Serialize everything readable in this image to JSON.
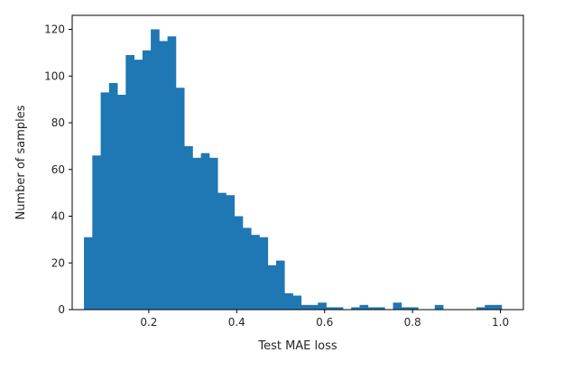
{
  "chart_data": {
    "type": "bar",
    "title": "",
    "xlabel": "Test MAE loss",
    "ylabel": "Number of samples",
    "xlim": [
      0.0258,
      1.0522
    ],
    "ylim": [
      0,
      126
    ],
    "xticks": [
      0.2,
      0.4,
      0.6,
      0.8,
      1.0
    ],
    "xtick_labels": [
      "0.2",
      "0.4",
      "0.6",
      "0.8",
      "1.0"
    ],
    "yticks": [
      0,
      20,
      40,
      60,
      80,
      100,
      120
    ],
    "ytick_labels": [
      "0",
      "20",
      "40",
      "60",
      "80",
      "100",
      "120"
    ],
    "bin_range": [
      0.0526,
      1.0
    ],
    "bin_width": 0.019,
    "bar_color": "#1f77b4",
    "grid": false,
    "legend": "none",
    "values": [
      31,
      66,
      93,
      97,
      92,
      109,
      107,
      111,
      120,
      115,
      117,
      95,
      70,
      65,
      67,
      65,
      50,
      49,
      40,
      35,
      32,
      31,
      19,
      21,
      7,
      6,
      2,
      2,
      3,
      1,
      1,
      0,
      1,
      2,
      1,
      1,
      0,
      3,
      1,
      1,
      0,
      0,
      2,
      0,
      0,
      0,
      0,
      1,
      2,
      2
    ]
  }
}
